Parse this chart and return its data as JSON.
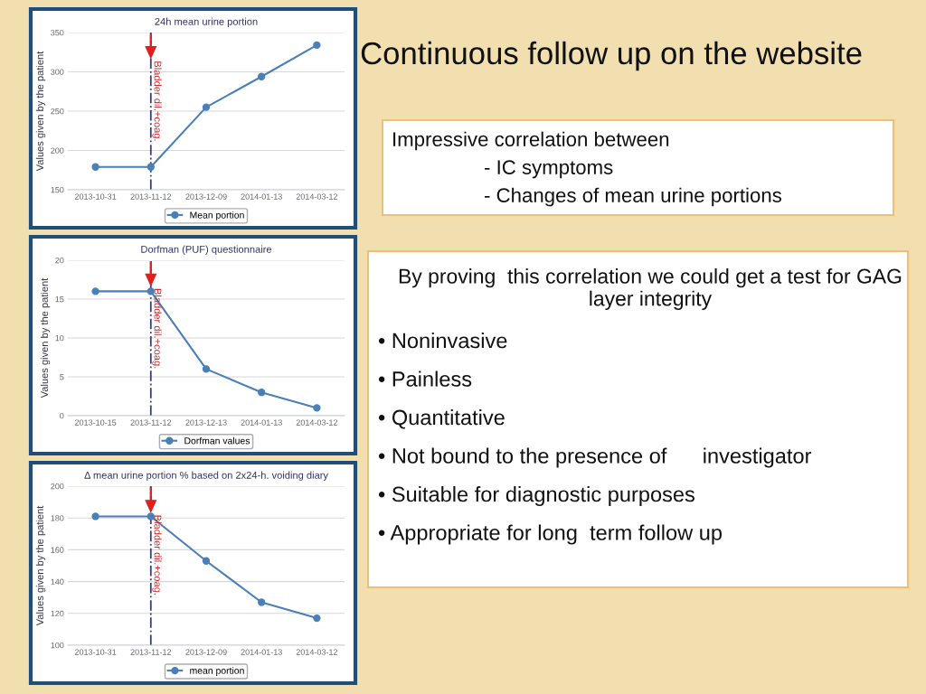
{
  "chart_data": [
    {
      "type": "line",
      "title": "24h mean urine portion",
      "ylabel": "Values given by the patient",
      "categories": [
        "2013-10-31",
        "2013-11-12",
        "2013-12-09",
        "2014-01-13",
        "2014-03-12"
      ],
      "series": [
        {
          "name": "Mean portion",
          "color": "#4a7fb8",
          "values": [
            179,
            179,
            255,
            294,
            334
          ]
        }
      ],
      "ylim": [
        150,
        350
      ],
      "yticks": [
        150,
        200,
        250,
        300,
        350
      ],
      "grid": "y",
      "legend": "bottom",
      "marker": "circle",
      "line_style": "solid",
      "ref_lines": [
        {
          "axis": "x",
          "value": "2013-11-12",
          "label": "Bladder dil.+coag.",
          "color": "#3b3f7c",
          "line_style": "dashdot"
        }
      ]
    },
    {
      "type": "line",
      "title": "Dorfman (PUF) questionnaire",
      "ylabel": "Values given by the patient",
      "categories": [
        "2013-10-15",
        "2013-11-12",
        "2013-12-13",
        "2014-01-13",
        "2014-03-12"
      ],
      "series": [
        {
          "name": "Dorfman values",
          "color": "#4a7fb8",
          "values": [
            16,
            16,
            6,
            3,
            1
          ]
        }
      ],
      "ylim": [
        0,
        20
      ],
      "yticks": [
        0,
        5,
        10,
        15,
        20
      ],
      "grid": "y",
      "legend": "bottom",
      "marker": "circle",
      "line_style": "solid",
      "ref_lines": [
        {
          "axis": "x",
          "value": "2013-11-12",
          "label": "Bladder dil.+coag.",
          "color": "#3b3f7c",
          "line_style": "dashdot"
        }
      ]
    },
    {
      "type": "line",
      "title": "Δ mean urine portion % based on 2x24-h. voiding diary",
      "ylabel": "Values given by the patient",
      "categories": [
        "2013-10-31",
        "2013-11-12",
        "2013-12-09",
        "2014-01-13",
        "2014-03-12"
      ],
      "series": [
        {
          "name": "mean portion",
          "color": "#4a7fb8",
          "values": [
            181,
            181,
            153,
            127,
            117
          ]
        }
      ],
      "ylim": [
        100,
        200
      ],
      "yticks": [
        100,
        120,
        140,
        160,
        180,
        200
      ],
      "grid": "y",
      "legend": "bottom",
      "marker": "circle",
      "line_style": "solid",
      "ref_lines": [
        {
          "axis": "x",
          "value": "2013-11-12",
          "label": "Bladder dil.+coag.",
          "color": "#3b3f7c",
          "line_style": "dashdot"
        }
      ]
    },
    {
      "type": "other",
      "title": "Continuous follow up on the website",
      "annotations": [
        "Impressive correlation between",
        "- IC symptoms",
        "- Changes of mean urine portions"
      ]
    },
    {
      "type": "other",
      "annotations": [
        "By proving  this correlation we could get a test for GAG layer integrity",
        "• Noninvasive",
        "• Painless",
        "• Quantitative",
        "• Not bound to the presence of      investigator",
        "• Suitable for diagnostic purposes",
        "• Appropriate for long  term follow up"
      ]
    }
  ]
}
